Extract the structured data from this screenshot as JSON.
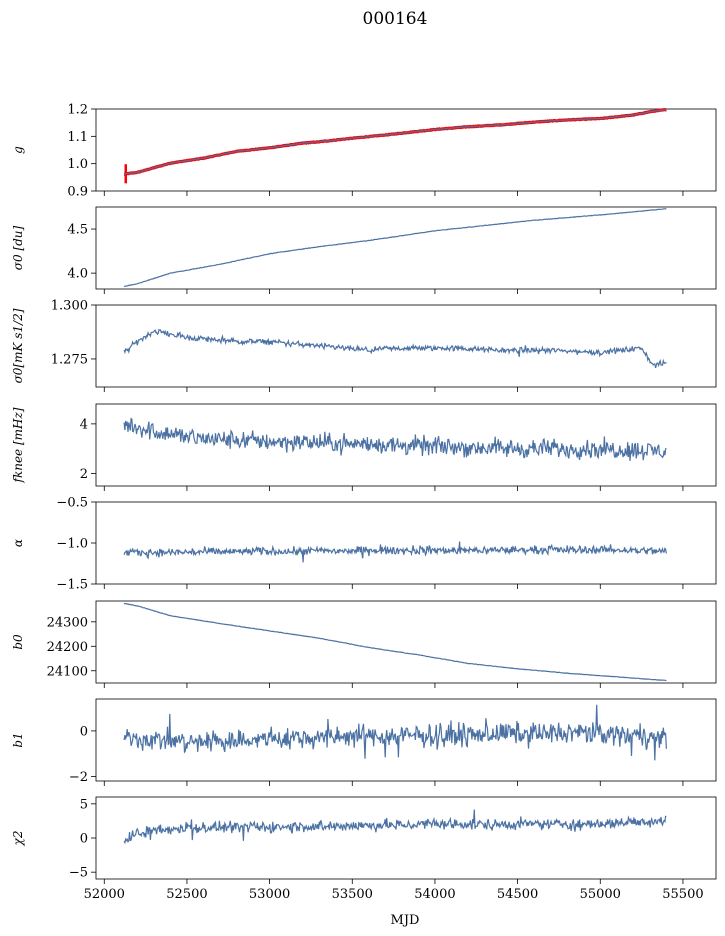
{
  "title": "000164",
  "chart_data": {
    "type": "line",
    "x_label": "MJD",
    "x_range": [
      51950,
      55700
    ],
    "x_ticks": [
      52000,
      52500,
      53000,
      53500,
      54000,
      54500,
      55000,
      55500
    ],
    "x_start": 52120,
    "x_end": 55400,
    "series_color": "#4c72a4",
    "panels": [
      {
        "ylabel": "g",
        "ylim": [
          0.9,
          1.2
        ],
        "yticks": [
          "0.9",
          "1.0",
          "1.1",
          "1.2"
        ],
        "ytick_values": [
          0.9,
          1.0,
          1.1,
          1.2
        ],
        "kind": "trend",
        "points": [
          [
            52120,
            0.962
          ],
          [
            52200,
            0.968
          ],
          [
            52300,
            0.985
          ],
          [
            52400,
            1.002
          ],
          [
            52600,
            1.02
          ],
          [
            52800,
            1.045
          ],
          [
            53000,
            1.058
          ],
          [
            53200,
            1.075
          ],
          [
            53300,
            1.08
          ],
          [
            53500,
            1.093
          ],
          [
            53700,
            1.105
          ],
          [
            54000,
            1.125
          ],
          [
            54200,
            1.135
          ],
          [
            54400,
            1.142
          ],
          [
            54600,
            1.152
          ],
          [
            54800,
            1.16
          ],
          [
            55000,
            1.165
          ],
          [
            55200,
            1.178
          ],
          [
            55300,
            1.19
          ],
          [
            55400,
            1.198
          ]
        ],
        "overlay": {
          "name": "red",
          "color": "#ff0000",
          "spike_x": 52130,
          "spike_range": [
            0.928,
            0.998
          ]
        }
      },
      {
        "ylabel": "σ0 [du]",
        "ylim": [
          3.82,
          4.75
        ],
        "yticks": [
          "4.0",
          "4.5"
        ],
        "ytick_values": [
          4.0,
          4.5
        ],
        "kind": "trend",
        "points": [
          [
            52120,
            3.85
          ],
          [
            52200,
            3.88
          ],
          [
            52400,
            4.0
          ],
          [
            52700,
            4.1
          ],
          [
            53000,
            4.22
          ],
          [
            53300,
            4.3
          ],
          [
            53600,
            4.37
          ],
          [
            54000,
            4.48
          ],
          [
            54300,
            4.54
          ],
          [
            54600,
            4.6
          ],
          [
            55000,
            4.66
          ],
          [
            55400,
            4.73
          ]
        ]
      },
      {
        "ylabel": "σ0[mK s1/2]",
        "ylim": [
          1.262,
          1.3
        ],
        "yticks": [
          "1.275",
          "1.300"
        ],
        "ytick_values": [
          1.275,
          1.3
        ],
        "kind": "noisy",
        "points": [
          [
            52120,
            1.278
          ],
          [
            52200,
            1.283
          ],
          [
            52300,
            1.288
          ],
          [
            52500,
            1.285
          ],
          [
            52800,
            1.283
          ],
          [
            53000,
            1.283
          ],
          [
            53300,
            1.281
          ],
          [
            53600,
            1.279
          ],
          [
            53800,
            1.28
          ],
          [
            54100,
            1.28
          ],
          [
            54400,
            1.279
          ],
          [
            54700,
            1.279
          ],
          [
            55000,
            1.278
          ],
          [
            55250,
            1.28
          ],
          [
            55320,
            1.272
          ],
          [
            55400,
            1.273
          ]
        ],
        "noise": 0.0012
      },
      {
        "ylabel": "fknee [mHz]",
        "ylim": [
          1.5,
          4.8
        ],
        "yticks": [
          "2",
          "4"
        ],
        "ytick_values": [
          2,
          4
        ],
        "kind": "noisy",
        "points": [
          [
            52120,
            4.0
          ],
          [
            52300,
            3.7
          ],
          [
            52600,
            3.4
          ],
          [
            53000,
            3.3
          ],
          [
            53500,
            3.2
          ],
          [
            54000,
            3.1
          ],
          [
            54500,
            3.0
          ],
          [
            55000,
            3.0
          ],
          [
            55400,
            2.9
          ]
        ],
        "noise": 0.35
      },
      {
        "ylabel": "α",
        "ylim": [
          -1.5,
          -0.5
        ],
        "yticks": [
          "−1.5",
          "−1.0",
          "−0.5"
        ],
        "ytick_values": [
          -1.5,
          -1.0,
          -0.5
        ],
        "kind": "noisy",
        "points": [
          [
            52120,
            -1.12
          ],
          [
            53000,
            -1.1
          ],
          [
            54000,
            -1.09
          ],
          [
            55000,
            -1.08
          ],
          [
            55400,
            -1.1
          ]
        ],
        "noise": 0.045
      },
      {
        "ylabel": "b0",
        "ylim": [
          24050,
          24385
        ],
        "yticks": [
          "24100",
          "24200",
          "24300"
        ],
        "ytick_values": [
          24100,
          24200,
          24300
        ],
        "kind": "trend",
        "points": [
          [
            52120,
            24375
          ],
          [
            52200,
            24365
          ],
          [
            52400,
            24325
          ],
          [
            52700,
            24293
          ],
          [
            53000,
            24263
          ],
          [
            53300,
            24233
          ],
          [
            53600,
            24195
          ],
          [
            53900,
            24165
          ],
          [
            54200,
            24130
          ],
          [
            54500,
            24108
          ],
          [
            54800,
            24090
          ],
          [
            55100,
            24075
          ],
          [
            55400,
            24060
          ]
        ]
      },
      {
        "ylabel": "b1",
        "ylim": [
          -2.2,
          1.4
        ],
        "yticks": [
          "−2",
          "0"
        ],
        "ytick_values": [
          -2,
          0
        ],
        "kind": "noisy",
        "points": [
          [
            52120,
            -0.3
          ],
          [
            52500,
            -0.5
          ],
          [
            53000,
            -0.35
          ],
          [
            53500,
            -0.25
          ],
          [
            54000,
            -0.2
          ],
          [
            54500,
            -0.1
          ],
          [
            55000,
            -0.1
          ],
          [
            55400,
            -0.3
          ]
        ],
        "noise": 0.45
      },
      {
        "ylabel": "χ2",
        "ylim": [
          -6,
          6
        ],
        "yticks": [
          "−5",
          "0",
          "5"
        ],
        "ytick_values": [
          -5,
          0,
          5
        ],
        "kind": "noisy",
        "points": [
          [
            52120,
            -0.5
          ],
          [
            52200,
            0.8
          ],
          [
            52500,
            1.5
          ],
          [
            53000,
            1.6
          ],
          [
            53500,
            1.8
          ],
          [
            54000,
            2.0
          ],
          [
            54500,
            2.0
          ],
          [
            55000,
            2.1
          ],
          [
            55400,
            2.6
          ]
        ],
        "noise": 0.75
      }
    ]
  }
}
